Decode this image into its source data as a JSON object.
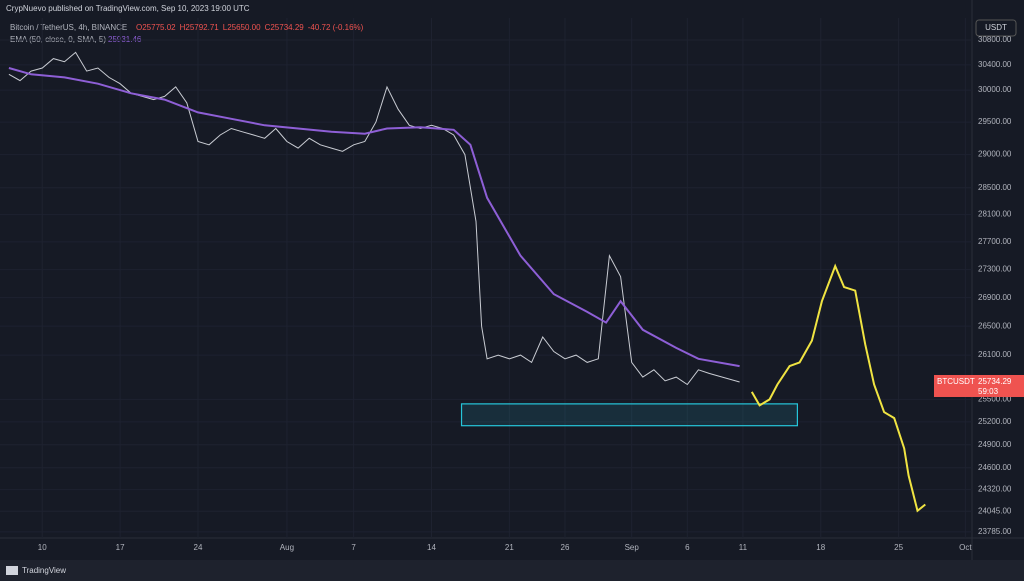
{
  "chart_data": {
    "type": "line",
    "publisher": "CrypNuevo published on TradingView.com, Sep 10, 2023 19:00 UTC",
    "symbol": "Bitcoin / TetherUS, 4h, BINANCE",
    "ohlc": [
      "O25775.02",
      "H25792.71",
      "L25650.00",
      "C25734.29",
      "-40.72 (-0.16%)"
    ],
    "ema_label": "EMA (50, close, 0, SMA, 5)",
    "ema_value": 25931.46,
    "currency": "USDT",
    "ticker": "BTCUSDT",
    "last_price": 25734.29,
    "countdown": "59:03",
    "brand": "TradingView",
    "log_scale": true,
    "grid": true,
    "xlim": [
      187.2,
      274.6
    ],
    "ylim": [
      23709,
      31158
    ],
    "xticks": [
      {
        "value": 191,
        "label": "10"
      },
      {
        "value": 198,
        "label": "17"
      },
      {
        "value": 205,
        "label": "24"
      },
      {
        "value": 213,
        "label": "Aug"
      },
      {
        "value": 219,
        "label": "7"
      },
      {
        "value": 226,
        "label": "14"
      },
      {
        "value": 233,
        "label": "21"
      },
      {
        "value": 238,
        "label": "26"
      },
      {
        "value": 244,
        "label": "Sep"
      },
      {
        "value": 249,
        "label": "6"
      },
      {
        "value": 254,
        "label": "11"
      },
      {
        "value": 261,
        "label": "18"
      },
      {
        "value": 268,
        "label": "25"
      },
      {
        "value": 274,
        "label": "Oct"
      }
    ],
    "yticks": [
      {
        "value": 30800,
        "label": "30800.00"
      },
      {
        "value": 30400,
        "label": "30400.00"
      },
      {
        "value": 30000,
        "label": "30000.00"
      },
      {
        "value": 29500,
        "label": "29500.00"
      },
      {
        "value": 29000,
        "label": "29000.00"
      },
      {
        "value": 28500,
        "label": "28500.00"
      },
      {
        "value": 28100,
        "label": "28100.00"
      },
      {
        "value": 27700,
        "label": "27700.00"
      },
      {
        "value": 27300,
        "label": "27300.00"
      },
      {
        "value": 26900,
        "label": "26900.00"
      },
      {
        "value": 26500,
        "label": "26500.00"
      },
      {
        "value": 26100,
        "label": "26100.00"
      },
      {
        "value": 25500,
        "label": "25500.00"
      },
      {
        "value": 25200,
        "label": "25200.00"
      },
      {
        "value": 24900,
        "label": "24900.00"
      },
      {
        "value": 24600,
        "label": "24600.00"
      },
      {
        "value": 24320,
        "label": "24320.00"
      },
      {
        "value": 24045,
        "label": "24045.00"
      },
      {
        "value": 23785,
        "label": "23785.00"
      }
    ],
    "series": [
      {
        "name": "BTCUSDT",
        "color": "#c9ccd3",
        "x": [
          188,
          189,
          190,
          191,
          192,
          193,
          194,
          195,
          196,
          197,
          198,
          199,
          200,
          201,
          202,
          203,
          204,
          205,
          206,
          207,
          208,
          209,
          210,
          211,
          212,
          213,
          214,
          215,
          216,
          217,
          218,
          219,
          220,
          221,
          222,
          223,
          224,
          225,
          226,
          227,
          228,
          229,
          230,
          230.5,
          231,
          232,
          233,
          234,
          235,
          236,
          237,
          238,
          239,
          240,
          241,
          242,
          243,
          244,
          245,
          246,
          247,
          248,
          249,
          250,
          251,
          253.7
        ],
        "values": [
          30250,
          30150,
          30300,
          30350,
          30500,
          30450,
          30600,
          30300,
          30350,
          30200,
          30100,
          29950,
          29900,
          29850,
          29900,
          30050,
          29800,
          29200,
          29150,
          29300,
          29400,
          29350,
          29300,
          29250,
          29400,
          29200,
          29100,
          29250,
          29150,
          29100,
          29050,
          29150,
          29200,
          29500,
          30050,
          29700,
          29450,
          29400,
          29450,
          29400,
          29300,
          29000,
          28000,
          26500,
          26050,
          26100,
          26050,
          26100,
          26000,
          26350,
          26150,
          26050,
          26100,
          26000,
          26050,
          27500,
          27200,
          26000,
          25800,
          25900,
          25750,
          25800,
          25700,
          25900,
          25850,
          25734
        ]
      },
      {
        "name": "EMA (50, close, 0, SMA, 5)",
        "color": "#8e5fd6",
        "x": [
          188,
          190,
          193,
          196,
          199,
          202,
          205,
          208,
          211,
          214,
          217,
          220,
          222,
          225,
          228,
          229.5,
          231,
          234,
          237,
          240,
          241.7,
          243,
          245,
          248,
          250,
          253.7
        ],
        "values": [
          30350,
          30250,
          30200,
          30100,
          29950,
          29850,
          29650,
          29550,
          29450,
          29400,
          29350,
          29320,
          29400,
          29420,
          29380,
          29150,
          28350,
          27500,
          26950,
          26700,
          26550,
          26850,
          26450,
          26200,
          26050,
          25950
        ]
      },
      {
        "color": "#f0e442",
        "x": [
          254.8,
          255.5,
          256.4,
          257.1,
          258.2,
          259.1,
          260.2,
          261.1,
          262.3,
          263.1,
          264.1,
          265.0,
          265.8,
          266.7,
          267.6,
          268.5,
          268.9,
          269.7,
          270.4
        ],
        "values": [
          25600,
          25420,
          25500,
          25700,
          25950,
          26000,
          26300,
          26850,
          27350,
          27050,
          27000,
          26250,
          25700,
          25330,
          25250,
          24850,
          24500,
          24050,
          24130
        ]
      }
    ],
    "zone": {
      "x": [
        228.7,
        258.9
      ],
      "y": [
        25150,
        25440
      ],
      "color": "#26c6da"
    }
  }
}
